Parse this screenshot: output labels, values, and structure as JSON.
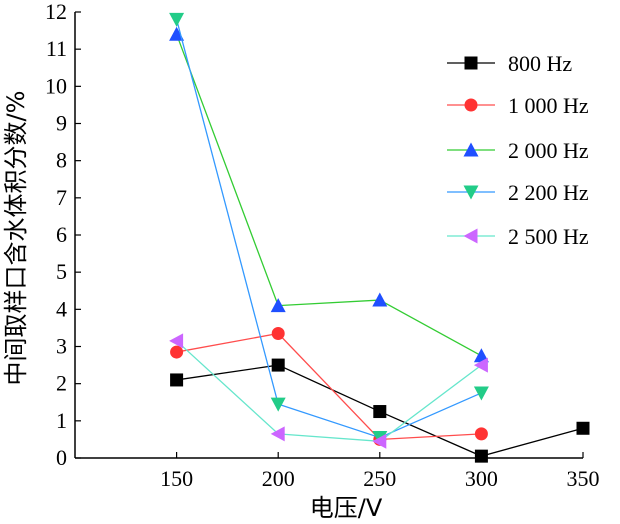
{
  "chart_data": {
    "type": "line",
    "title": "",
    "xlabel": "电压/V",
    "ylabel": "中间取样口含水体积分数/%",
    "xlim": [
      100,
      350
    ],
    "ylim": [
      0,
      12
    ],
    "xticks": [
      150,
      200,
      250,
      300,
      350
    ],
    "yticks": [
      0,
      1,
      2,
      3,
      4,
      5,
      6,
      7,
      8,
      9,
      10,
      11,
      12
    ],
    "grid": false,
    "legend_position": "top-right",
    "series": [
      {
        "name": "800 Hz",
        "color": "#000000",
        "marker": "square",
        "x": [
          150,
          200,
          250,
          300,
          350
        ],
        "y": [
          2.1,
          2.5,
          1.25,
          0.05,
          0.8
        ]
      },
      {
        "name": "1 000 Hz",
        "color": "#ff4d4d",
        "marker": "circle",
        "x": [
          150,
          200,
          250,
          300
        ],
        "y": [
          2.85,
          3.35,
          0.5,
          0.65
        ]
      },
      {
        "name": "2 000 Hz",
        "color": "#33cc33",
        "marker": "triangle-up",
        "x": [
          150,
          200,
          250,
          300
        ],
        "y": [
          11.4,
          4.1,
          4.25,
          2.75
        ]
      },
      {
        "name": "2 200 Hz",
        "color": "#3399ff",
        "marker": "triangle-down",
        "x": [
          150,
          200,
          250,
          300
        ],
        "y": [
          11.8,
          1.45,
          0.55,
          1.75
        ]
      },
      {
        "name": "2 500 Hz",
        "color": "#66e6cc",
        "marker": "triangle-left",
        "x": [
          150,
          200,
          250,
          300
        ],
        "y": [
          3.15,
          0.65,
          0.45,
          2.5
        ]
      }
    ]
  },
  "colors": {
    "mk_2000": "#1f4fff",
    "mk_2200": "#22cc88",
    "mk_2500": "#cc66ff"
  }
}
